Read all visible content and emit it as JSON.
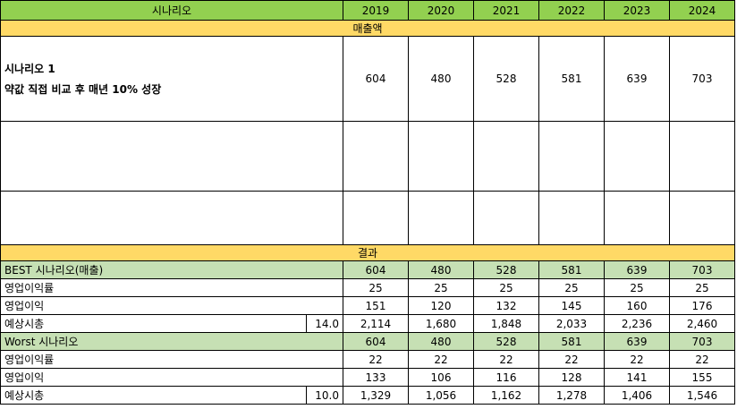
{
  "header": {
    "label": "시나리오",
    "years": [
      "2019",
      "2020",
      "2021",
      "2022",
      "2023",
      "2024"
    ]
  },
  "sections": {
    "sales": "매출액",
    "result": "결과"
  },
  "scenario1": {
    "title": "시나리오 1",
    "desc": "약값 직접 비교 후 매년 10% 성장",
    "values": [
      "604",
      "480",
      "528",
      "581",
      "639",
      "703"
    ]
  },
  "best": {
    "label": "BEST 시나리오(매출)",
    "values": [
      "604",
      "480",
      "528",
      "581",
      "639",
      "703"
    ],
    "margin_label": "영업이익률",
    "margin": [
      "25",
      "25",
      "25",
      "25",
      "25",
      "25"
    ],
    "profit_label": "영업이익",
    "profit": [
      "151",
      "120",
      "132",
      "145",
      "160",
      "176"
    ],
    "cap_label": "예상시총",
    "multiple": "14.0",
    "cap": [
      "2,114",
      "1,680",
      "1,848",
      "2,033",
      "2,236",
      "2,460"
    ]
  },
  "worst": {
    "label": "Worst 시나리오",
    "values": [
      "604",
      "480",
      "528",
      "581",
      "639",
      "703"
    ],
    "margin_label": "영업이익률",
    "margin": [
      "22",
      "22",
      "22",
      "22",
      "22",
      "22"
    ],
    "profit_label": "영업이익",
    "profit": [
      "133",
      "106",
      "116",
      "128",
      "141",
      "155"
    ],
    "cap_label": "예상시총",
    "multiple": "10.0",
    "cap": [
      "1,329",
      "1,056",
      "1,162",
      "1,278",
      "1,406",
      "1,546"
    ]
  },
  "colors": {
    "header_green": "#92d050",
    "section_yellow": "#ffd966",
    "scenario_green": "#c6e0b4"
  }
}
